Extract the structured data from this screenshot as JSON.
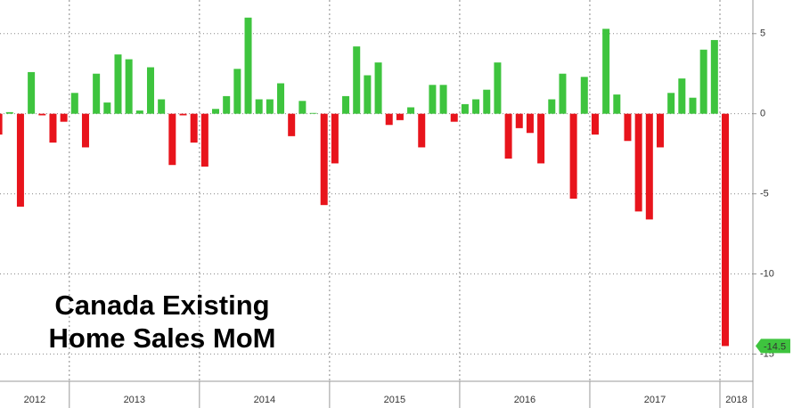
{
  "chart_data": {
    "type": "bar",
    "title": "Canada Existing Home Sales MoM",
    "years": [
      "2012",
      "2013",
      "2014",
      "2015",
      "2016",
      "2017",
      "2018"
    ],
    "values": [
      -1.3,
      0.1,
      -5.8,
      2.6,
      -0.1,
      -1.8,
      -0.5,
      1.3,
      -2.1,
      2.5,
      0.7,
      3.7,
      3.4,
      0.2,
      2.9,
      0.9,
      -3.2,
      -0.1,
      -1.8,
      -3.3,
      0.3,
      1.1,
      2.8,
      6.0,
      0.9,
      0.9,
      1.9,
      -1.4,
      0.8,
      0.05,
      -5.7,
      -3.1,
      1.1,
      4.2,
      2.4,
      3.2,
      -0.7,
      -0.4,
      0.4,
      -2.1,
      1.8,
      1.8,
      -0.5,
      0.6,
      0.9,
      1.5,
      3.2,
      -2.8,
      -0.9,
      -1.2,
      -3.1,
      0.9,
      2.5,
      -5.3,
      2.3,
      -1.3,
      5.3,
      1.2,
      -1.7,
      -6.1,
      -6.6,
      -2.1,
      1.3,
      2.2,
      1.0,
      4.0,
      4.6,
      -14.5
    ],
    "positive_color": "#3ec43e",
    "negative_color": "#e8141c",
    "ylim": [
      -16.7,
      7.1
    ],
    "yticks": [
      5,
      0,
      -5,
      -10,
      -15
    ],
    "grid": true
  }
}
